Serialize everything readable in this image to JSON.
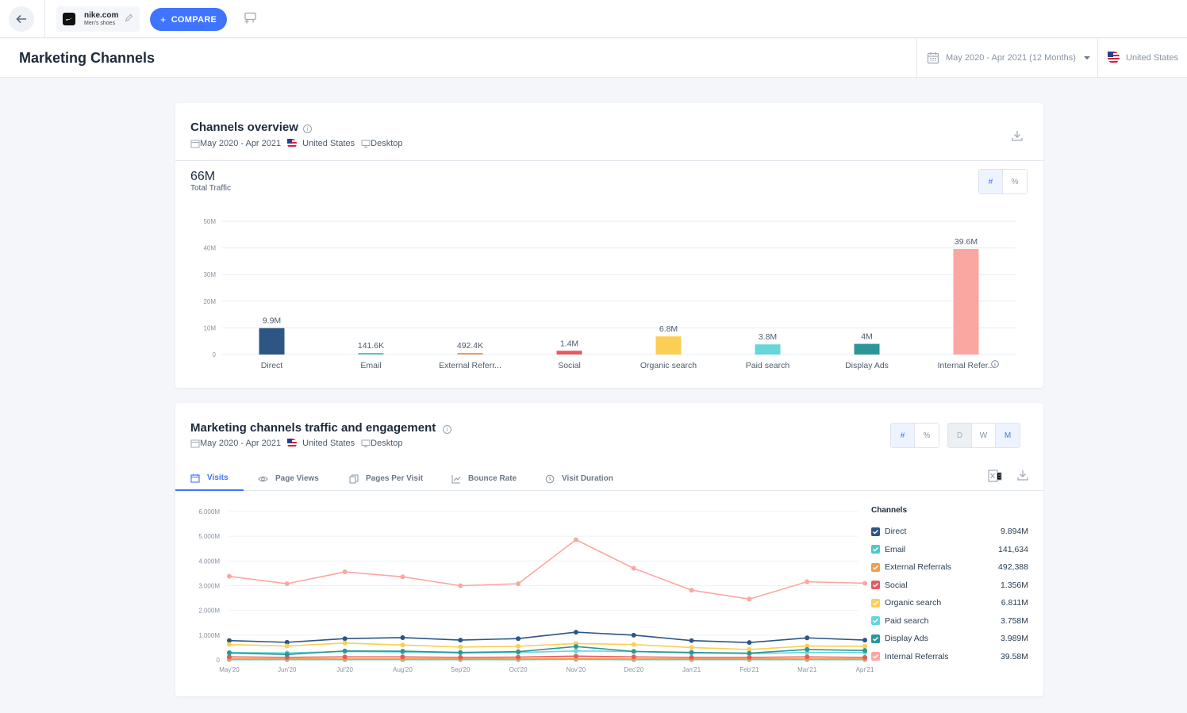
{
  "topbar": {
    "site_name": "nike.com",
    "site_subtitle": "Men's shoes",
    "compare_label": "COMPARE"
  },
  "header": {
    "title": "Marketing Channels",
    "date_range": "May 2020 - Apr 2021 (12 Months)",
    "country": "United States"
  },
  "overview": {
    "title": "Channels overview",
    "date": "May 2020 - Apr 2021",
    "country": "United States",
    "device": "Desktop",
    "total_value": "66M",
    "total_label": "Total Traffic",
    "toggle": [
      "#",
      "%"
    ],
    "toggle_active": "#",
    "chart_data": {
      "type": "bar",
      "categories": [
        "Direct",
        "Email",
        "External Referr...",
        "Social",
        "Organic search",
        "Paid search",
        "Display Ads",
        "Internal Refer..."
      ],
      "values": [
        9.9,
        0.1416,
        0.4924,
        1.4,
        6.8,
        3.8,
        4.0,
        39.6
      ],
      "value_labels": [
        "9.9M",
        "141.6K",
        "492.4K",
        "1.4M",
        "6.8M",
        "3.8M",
        "4M",
        "39.6M"
      ],
      "colors": [
        "#2d5685",
        "#4fc8c8",
        "#f39c4e",
        "#e45a5f",
        "#fbcf53",
        "#66d6da",
        "#2e9597",
        "#fba7a1"
      ],
      "ylim": [
        0,
        50
      ],
      "yticks": [
        "0",
        "10M",
        "20M",
        "30M",
        "40M",
        "50M"
      ],
      "grid": true
    }
  },
  "engagement": {
    "title": "Marketing channels traffic and engagement",
    "date": "May 2020 - Apr 2021",
    "country": "United States",
    "device": "Desktop",
    "toggle": [
      "#",
      "%"
    ],
    "toggle_active": "#",
    "granularity": [
      "D",
      "W",
      "M"
    ],
    "granularity_active": "M",
    "granularity_disabled": "D",
    "tabs": [
      {
        "label": "Visits",
        "icon": "calendar-icon"
      },
      {
        "label": "Page Views",
        "icon": "eye-icon"
      },
      {
        "label": "Pages Per Visit",
        "icon": "pages-icon"
      },
      {
        "label": "Bounce Rate",
        "icon": "trend-icon"
      },
      {
        "label": "Visit Duration",
        "icon": "clock-icon"
      }
    ],
    "active_tab": "Visits",
    "legend_title": "Channels",
    "chart_data": {
      "type": "line",
      "x": [
        "May'20",
        "Jun'20",
        "Jul'20",
        "Aug'20",
        "Sep'20",
        "Oct'20",
        "Nov'20",
        "Dec'20",
        "Jan'21",
        "Feb'21",
        "Mar'21",
        "Apr'21"
      ],
      "yticks": [
        "0",
        "1.000M",
        "2.000M",
        "3.000M",
        "4.000M",
        "5.000M",
        "6.000M"
      ],
      "ylim": [
        0,
        6
      ],
      "series": [
        {
          "name": "Direct",
          "total": "9.894M",
          "color": "#2d5685",
          "values": [
            0.78,
            0.71,
            0.86,
            0.9,
            0.8,
            0.86,
            1.12,
            1.0,
            0.78,
            0.7,
            0.89,
            0.8
          ]
        },
        {
          "name": "Email",
          "total": "141,634",
          "color": "#4fc8c8",
          "values": [
            0.01,
            0.01,
            0.01,
            0.01,
            0.01,
            0.01,
            0.02,
            0.01,
            0.01,
            0.01,
            0.01,
            0.01
          ]
        },
        {
          "name": "External Referrals",
          "total": "492,388",
          "color": "#f39c4e",
          "values": [
            0.04,
            0.04,
            0.04,
            0.04,
            0.04,
            0.04,
            0.05,
            0.04,
            0.04,
            0.04,
            0.04,
            0.04
          ]
        },
        {
          "name": "Social",
          "total": "1.356M",
          "color": "#e45a5f",
          "values": [
            0.12,
            0.1,
            0.12,
            0.12,
            0.1,
            0.11,
            0.15,
            0.12,
            0.1,
            0.1,
            0.12,
            0.1
          ]
        },
        {
          "name": "Organic search",
          "total": "6.811M",
          "color": "#fbcf53",
          "values": [
            0.62,
            0.56,
            0.68,
            0.6,
            0.52,
            0.55,
            0.66,
            0.62,
            0.5,
            0.42,
            0.56,
            0.55
          ]
        },
        {
          "name": "Paid search",
          "total": "3.758M",
          "color": "#66d6da",
          "values": [
            0.3,
            0.28,
            0.34,
            0.32,
            0.28,
            0.3,
            0.36,
            0.34,
            0.28,
            0.25,
            0.3,
            0.3
          ]
        },
        {
          "name": "Display Ads",
          "total": "3.989M",
          "color": "#2e9597",
          "values": [
            0.28,
            0.22,
            0.36,
            0.35,
            0.3,
            0.33,
            0.54,
            0.34,
            0.3,
            0.27,
            0.42,
            0.38
          ]
        },
        {
          "name": "Internal Referrals",
          "total": "39.58M",
          "color": "#fba7a1",
          "values": [
            3.38,
            3.08,
            3.56,
            3.36,
            3.0,
            3.08,
            4.86,
            3.7,
            2.82,
            2.46,
            3.16,
            3.1
          ]
        }
      ]
    }
  }
}
